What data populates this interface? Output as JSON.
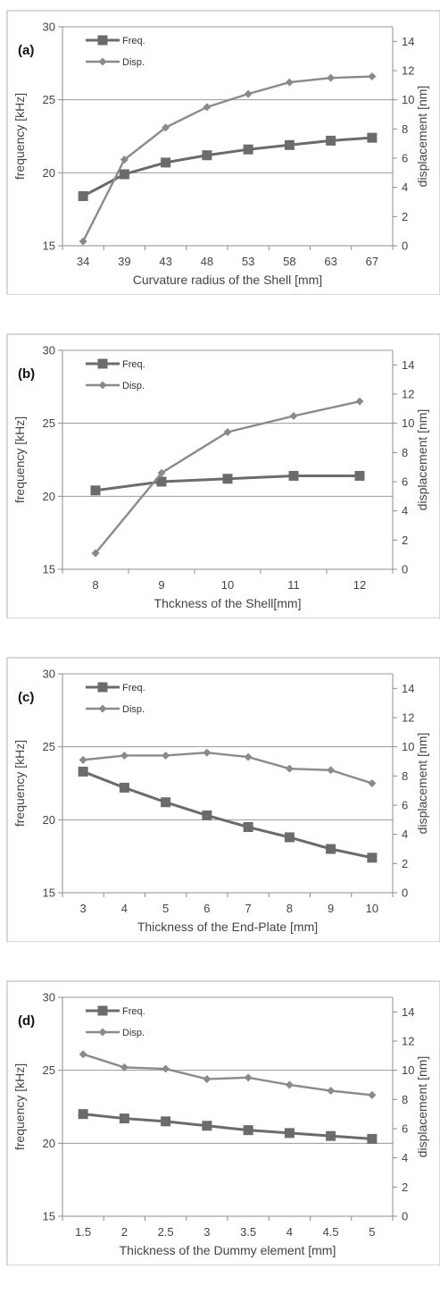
{
  "chart_data": [
    {
      "type": "line",
      "panel_label": "(a)",
      "categories": [
        "34",
        "39",
        "43",
        "48",
        "53",
        "58",
        "63",
        "67"
      ],
      "series": [
        {
          "name": "Freq.",
          "axis": "left",
          "marker": "square",
          "values": [
            18.4,
            19.9,
            20.7,
            21.2,
            21.6,
            21.9,
            22.2,
            22.4
          ]
        },
        {
          "name": "Disp.",
          "axis": "right",
          "marker": "diamond",
          "values": [
            0.3,
            5.9,
            8.1,
            9.5,
            10.4,
            11.2,
            11.5,
            11.6
          ]
        }
      ],
      "xlabel": "Curvature radius of the Shell [mm]",
      "ylabel": "frequency [kHz]",
      "y2label": "displacement [nm]",
      "ylim": [
        15,
        30
      ],
      "yticks": [
        15,
        20,
        25,
        30
      ],
      "y2lim": [
        0,
        15
      ],
      "y2ticks": [
        0,
        2,
        4,
        6,
        8,
        10,
        12,
        14
      ],
      "grid": true,
      "legend": "top-left"
    },
    {
      "type": "line",
      "panel_label": "(b)",
      "categories": [
        "8",
        "9",
        "10",
        "11",
        "12"
      ],
      "series": [
        {
          "name": "Freq.",
          "axis": "left",
          "marker": "square",
          "values": [
            20.4,
            21.0,
            21.2,
            21.4,
            21.4
          ]
        },
        {
          "name": "Disp.",
          "axis": "right",
          "marker": "diamond",
          "values": [
            1.1,
            6.6,
            9.4,
            10.5,
            11.5
          ]
        }
      ],
      "xlabel": "Thckness of the Shell[mm]",
      "ylabel": "frequency [kHz]",
      "y2label": "displacement [nm]",
      "ylim": [
        15,
        30
      ],
      "yticks": [
        15,
        20,
        25,
        30
      ],
      "y2lim": [
        0,
        15
      ],
      "y2ticks": [
        0,
        2,
        4,
        6,
        8,
        10,
        12,
        14
      ],
      "grid": true,
      "legend": "top-left"
    },
    {
      "type": "line",
      "panel_label": "(c)",
      "categories": [
        "3",
        "4",
        "5",
        "6",
        "7",
        "8",
        "9",
        "10"
      ],
      "series": [
        {
          "name": "Freq.",
          "axis": "left",
          "marker": "square",
          "values": [
            23.3,
            22.2,
            21.2,
            20.3,
            19.5,
            18.8,
            18.0,
            17.4
          ]
        },
        {
          "name": "Disp.",
          "axis": "right",
          "marker": "diamond",
          "values": [
            9.1,
            9.4,
            9.4,
            9.6,
            9.3,
            8.5,
            8.4,
            7.5
          ]
        }
      ],
      "xlabel": "Thickness of the End-Plate [mm]",
      "ylabel": "frequency [kHz]",
      "y2label": "displacement [nm]",
      "ylim": [
        15,
        30
      ],
      "yticks": [
        15,
        20,
        25,
        30
      ],
      "y2lim": [
        0,
        15
      ],
      "y2ticks": [
        0,
        2,
        4,
        6,
        8,
        10,
        12,
        14
      ],
      "grid": true,
      "legend": "top-left"
    },
    {
      "type": "line",
      "panel_label": "(d)",
      "categories": [
        "1.5",
        "2",
        "2.5",
        "3",
        "3.5",
        "4",
        "4.5",
        "5"
      ],
      "series": [
        {
          "name": "Freq.",
          "axis": "left",
          "marker": "square",
          "values": [
            22.0,
            21.7,
            21.5,
            21.2,
            20.9,
            20.7,
            20.5,
            20.3
          ]
        },
        {
          "name": "Disp.",
          "axis": "right",
          "marker": "diamond",
          "values": [
            11.1,
            10.2,
            10.1,
            9.4,
            9.5,
            9.0,
            8.6,
            8.3
          ]
        }
      ],
      "xlabel": "Thickness of the Dummy element [mm]",
      "ylabel": "frequency [kHz]",
      "y2label": "displacement [nm]",
      "ylim": [
        15,
        30
      ],
      "yticks": [
        15,
        20,
        25,
        30
      ],
      "y2lim": [
        0,
        15
      ],
      "y2ticks": [
        0,
        2,
        4,
        6,
        8,
        10,
        12,
        14
      ],
      "grid": true,
      "legend": "top-left"
    }
  ],
  "colors": {
    "freq": "#6b6b6b",
    "disp": "#8a8a8a",
    "grid": "#9a9a9a",
    "axis": "#8c8c8c",
    "frame": "#b0b0b0"
  }
}
